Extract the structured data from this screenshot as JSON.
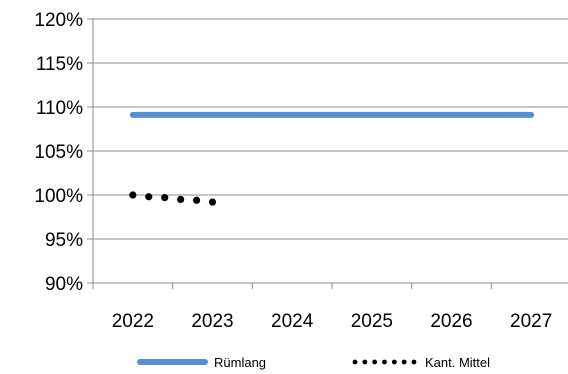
{
  "chart_data": {
    "type": "line",
    "x_categories": [
      "2022",
      "2023",
      "2024",
      "2025",
      "2026",
      "2027"
    ],
    "y_axis": {
      "min": 0.9,
      "max": 1.2,
      "step": 0.05,
      "tick_labels": [
        "90%",
        "95%",
        "100%",
        "105%",
        "110%",
        "115%",
        "120%"
      ]
    },
    "grid": "horizontal",
    "legend_position": "bottom",
    "series": [
      {
        "name": "Rümlang",
        "style": "solid",
        "color": "#5b8fc9",
        "points": [
          {
            "x": 2022.0,
            "y": 1.091
          },
          {
            "x": 2027.0,
            "y": 1.091
          }
        ]
      },
      {
        "name": "Kant. Mittel",
        "style": "dotted",
        "color": "#000000",
        "points": [
          {
            "x": 2022.0,
            "y": 1.0
          },
          {
            "x": 2022.2,
            "y": 0.998
          },
          {
            "x": 2022.4,
            "y": 0.997
          },
          {
            "x": 2022.6,
            "y": 0.995
          },
          {
            "x": 2022.8,
            "y": 0.994
          },
          {
            "x": 2023.0,
            "y": 0.992
          }
        ]
      }
    ]
  }
}
